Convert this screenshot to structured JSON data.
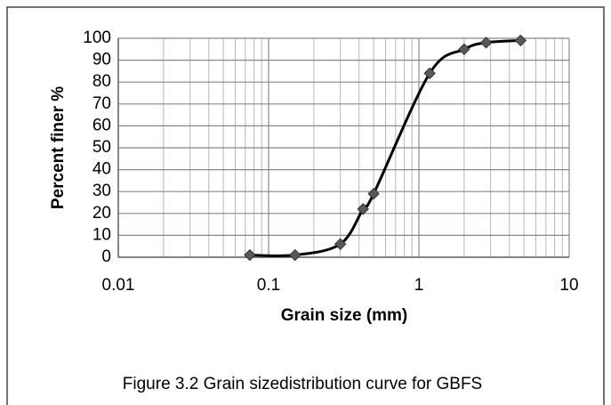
{
  "chart_data": {
    "type": "line",
    "x_label": "Grain size (mm)",
    "y_label": "Percent finer %",
    "caption": "Figure 3.2 Grain sizedistribution curve for GBFS",
    "x": [
      0.075,
      0.15,
      0.3,
      0.425,
      0.5,
      1.18,
      2,
      2.8,
      4.75
    ],
    "series": [
      {
        "color": "#000000",
        "marker_color": "#595959",
        "values": [
          1,
          1,
          6,
          22,
          29,
          84,
          95,
          98,
          99
        ]
      }
    ],
    "xscale": "log",
    "xlim": [
      0.01,
      10
    ],
    "xticks": [
      0.01,
      0.1,
      1,
      10
    ],
    "ylim": [
      0,
      100
    ],
    "yticks": [
      0,
      10,
      20,
      30,
      40,
      50,
      60,
      70,
      80,
      90,
      100
    ],
    "grid": true
  }
}
